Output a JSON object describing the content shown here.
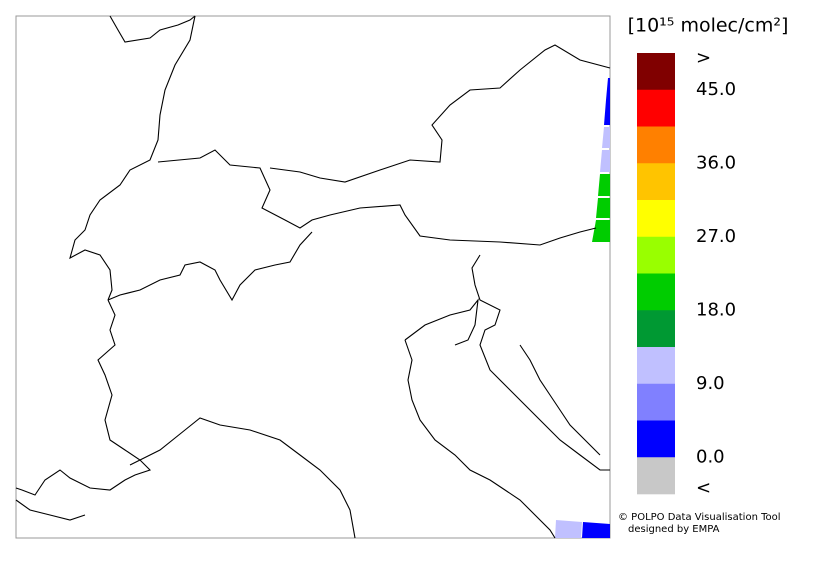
{
  "legend": {
    "unit": "[10¹⁵ molec/cm²]",
    "colors": [
      "#800000",
      "#ff0000",
      "#ff8000",
      "#ffc400",
      "#ffff00",
      "#99ff00",
      "#00cc00",
      "#009933",
      "#c0c0ff",
      "#8080ff",
      "#0000ff",
      "#c8c8c8"
    ],
    "labels": [
      ">",
      "45.0",
      "36.0",
      "27.0",
      "18.0",
      "9.0",
      "0.0",
      "<"
    ]
  },
  "credits": [
    "© POLPO Data Visualisation Tool",
    "designed by EMPA"
  ]
}
